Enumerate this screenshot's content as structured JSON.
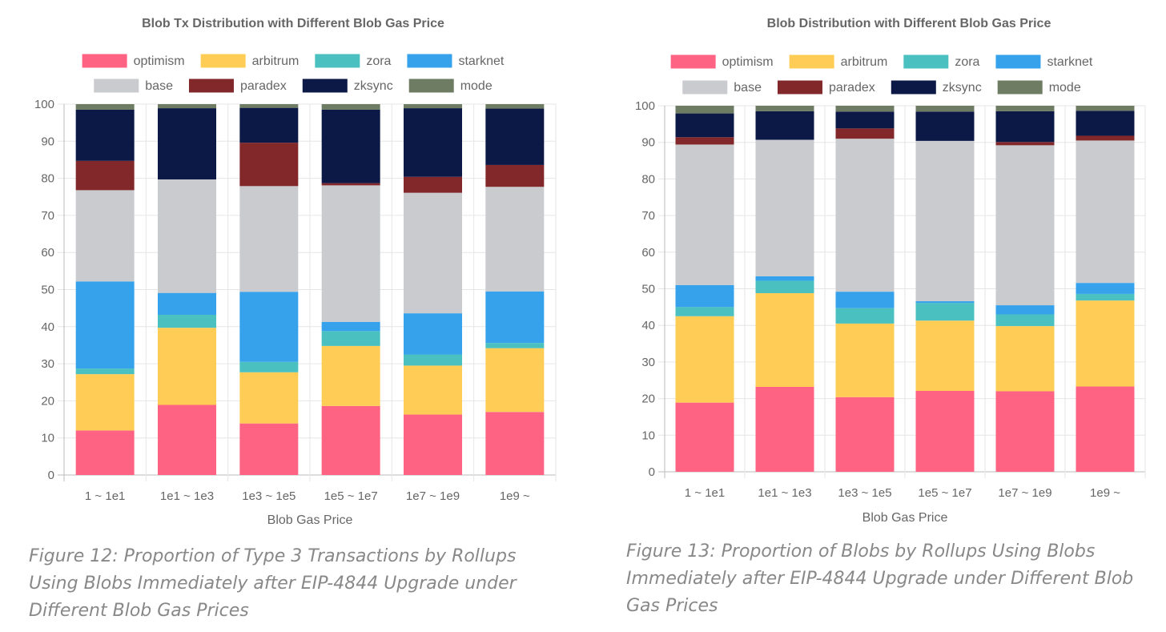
{
  "series_colors": {
    "optimism": "#ff6384",
    "arbitrum": "#ffcd56",
    "zora": "#4bc0c0",
    "starknet": "#36a2eb",
    "base": "#c9cbcf",
    "paradex": "#82282a",
    "zksync": "#0c1846",
    "mode": "#6d7c63"
  },
  "charts": [
    {
      "caption": "Figure 12: Proportion of Type 3 Transactions by Rollups Using Blobs Immediately after EIP-4844 Upgrade under Different Blob Gas Prices",
      "chart_data": {
        "type": "bar",
        "stacked": true,
        "title": "Blob Tx Distribution with Different Blob Gas Price",
        "xlabel": "Blob Gas Price",
        "ylabel": "",
        "ylim": [
          0,
          100
        ],
        "yticks": [
          "0",
          "10",
          "20",
          "30",
          "40",
          "50",
          "60",
          "70",
          "80",
          "90",
          "100"
        ],
        "legend_position": "top",
        "grid": true,
        "categories": [
          "1 ~ 1e1",
          "1e1 ~ 1e3",
          "1e3 ~ 1e5",
          "1e5 ~ 1e7",
          "1e7 ~ 1e9",
          "1e9 ~"
        ],
        "series": [
          {
            "name": "optimism",
            "values": [
              12.0,
              18.9,
              13.9,
              18.6,
              16.3,
              17.0
            ]
          },
          {
            "name": "arbitrum",
            "values": [
              15.2,
              20.8,
              13.8,
              16.2,
              13.2,
              17.2
            ]
          },
          {
            "name": "zora",
            "values": [
              1.5,
              3.5,
              2.8,
              4.0,
              3.0,
              1.4
            ]
          },
          {
            "name": "starknet",
            "values": [
              23.5,
              5.9,
              18.9,
              2.5,
              11.1,
              13.9
            ]
          },
          {
            "name": "base",
            "values": [
              24.6,
              30.6,
              28.5,
              36.8,
              32.5,
              28.2
            ]
          },
          {
            "name": "paradex",
            "values": [
              7.9,
              0.0,
              11.7,
              0.6,
              4.3,
              5.9
            ]
          },
          {
            "name": "zksync",
            "values": [
              13.8,
              19.2,
              9.4,
              19.8,
              18.5,
              15.2
            ]
          },
          {
            "name": "mode",
            "values": [
              1.5,
              1.1,
              1.0,
              1.5,
              1.1,
              1.2
            ]
          }
        ]
      }
    },
    {
      "caption": "Figure 13: Proportion of Blobs by Rollups Using Blobs Immediately after EIP-4844 Upgrade under Different Blob Gas Prices",
      "chart_data": {
        "type": "bar",
        "stacked": true,
        "title": "Blob Distribution with Different Blob Gas Price",
        "xlabel": "Blob Gas Price",
        "ylabel": "",
        "ylim": [
          0,
          100
        ],
        "yticks": [
          "0",
          "10",
          "20",
          "30",
          "40",
          "50",
          "60",
          "70",
          "80",
          "90",
          "100"
        ],
        "legend_position": "top",
        "grid": true,
        "categories": [
          "1 ~ 1e1",
          "1e1 ~ 1e3",
          "1e3 ~ 1e5",
          "1e5 ~ 1e7",
          "1e7 ~ 1e9",
          "1e9 ~"
        ],
        "series": [
          {
            "name": "optimism",
            "values": [
              18.9,
              23.2,
              20.4,
              22.1,
              22.0,
              23.3
            ]
          },
          {
            "name": "arbitrum",
            "values": [
              23.6,
              25.6,
              20.1,
              19.2,
              17.8,
              23.5
            ]
          },
          {
            "name": "zora",
            "values": [
              2.5,
              3.4,
              4.2,
              4.8,
              3.2,
              1.8
            ]
          },
          {
            "name": "starknet",
            "values": [
              6.0,
              1.2,
              4.5,
              0.5,
              2.5,
              3.0
            ]
          },
          {
            "name": "base",
            "values": [
              38.4,
              37.3,
              41.8,
              43.8,
              43.7,
              38.9
            ]
          },
          {
            "name": "paradex",
            "values": [
              2.0,
              0.0,
              2.8,
              0.0,
              0.9,
              1.3
            ]
          },
          {
            "name": "zksync",
            "values": [
              6.5,
              7.8,
              4.6,
              8.0,
              8.4,
              6.8
            ]
          },
          {
            "name": "mode",
            "values": [
              2.1,
              1.5,
              1.6,
              1.6,
              1.5,
              1.4
            ]
          }
        ]
      }
    }
  ]
}
